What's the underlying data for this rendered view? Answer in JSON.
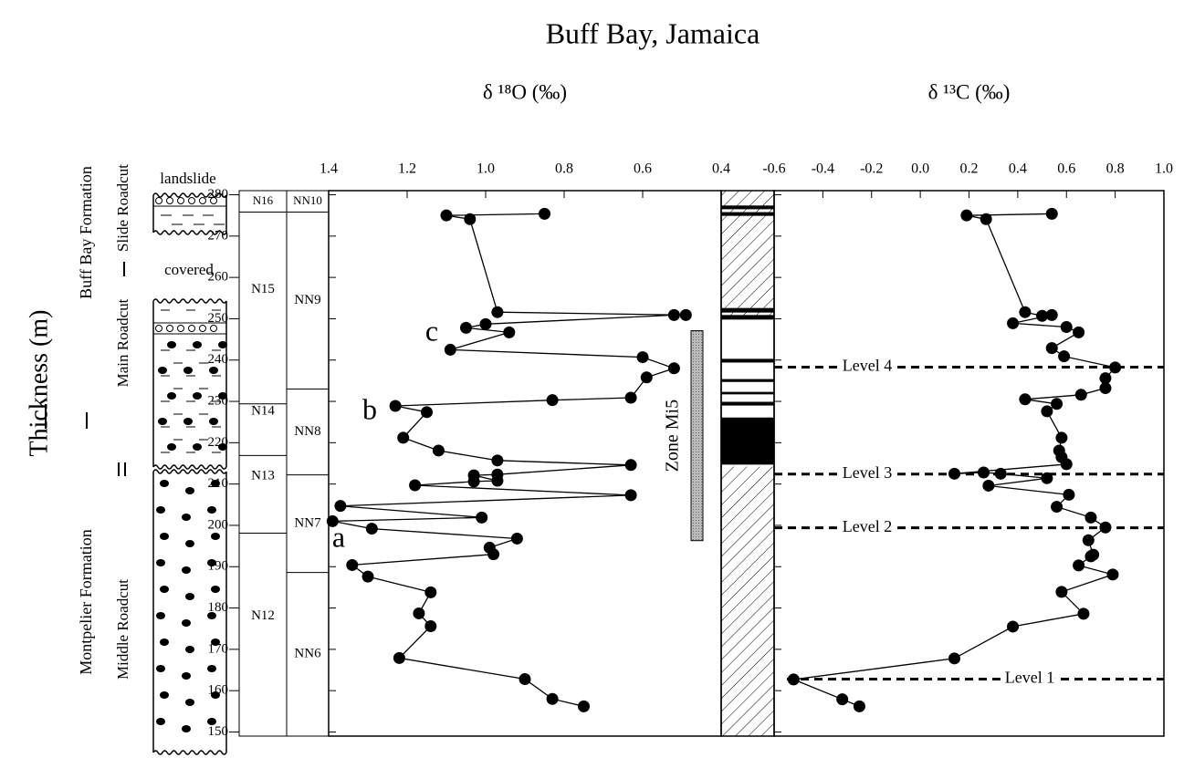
{
  "title": "Buff Bay, Jamaica",
  "ylabel": "Thickness (m)",
  "ylim": [
    149,
    281
  ],
  "yticks": [
    150,
    160,
    170,
    180,
    190,
    200,
    210,
    220,
    230,
    240,
    250,
    260,
    270,
    280
  ],
  "formations": [
    "Buff Bay Formation",
    "Montpelier Formation"
  ],
  "sections": [
    "Slide Roadcut",
    "Main Roadcut",
    "Middle Roadcut"
  ],
  "lithology_notes": [
    "landslide",
    "covered"
  ],
  "planktonic_zones": {
    "names": [
      "N16",
      "N15",
      "N14",
      "N13",
      "N12"
    ],
    "boundaries": [
      275.8,
      229.4,
      216.9,
      198.1
    ]
  },
  "nannofossil_zones": {
    "names": [
      "NN10",
      "NN9",
      "NN8",
      "NN7",
      "NN6"
    ],
    "boundaries": [
      275.8,
      233.0,
      212.2,
      188.6
    ]
  },
  "magnetostratigraphy": {
    "normal": [
      [
        277.4,
        276.5
      ],
      [
        275.8,
        274.9
      ],
      [
        252.6,
        251.5
      ],
      [
        250.9,
        249.8
      ],
      [
        240.3,
        239.4
      ],
      [
        235.4,
        234.7
      ],
      [
        232.3,
        231.7
      ],
      [
        229.9,
        229.0
      ],
      [
        226.1,
        214.7
      ]
    ],
    "gap": [
      249.8,
      214.2
    ]
  },
  "chart_data": [
    {
      "type": "line",
      "xlabel": "δ ¹⁸O (‰)",
      "xlim": [
        1.4,
        0.4
      ],
      "xticks": [
        1.4,
        1.2,
        {
          "value": 1.0,
          "label": "1.0"
        },
        0.8,
        0.6,
        0.4
      ],
      "thickness": [
        275.4,
        275.0,
        274.1,
        251.6,
        250.9,
        250.9,
        248.7,
        247.8,
        246.7,
        242.5,
        240.7,
        238.0,
        235.8,
        230.9,
        230.3,
        228.9,
        227.4,
        221.2,
        218.1,
        215.7,
        214.6,
        212.3,
        212.1,
        210.8,
        210.6,
        209.7,
        207.3,
        204.7,
        201.9,
        201.0,
        199.2,
        196.8,
        194.6,
        193.0,
        190.4,
        187.6,
        183.8,
        178.7,
        175.6,
        167.9,
        162.8,
        158.0,
        156.2
      ],
      "values": [
        0.85,
        1.1,
        1.04,
        0.97,
        0.49,
        0.52,
        1.0,
        1.05,
        0.94,
        1.09,
        0.6,
        0.52,
        0.59,
        0.63,
        0.83,
        1.23,
        1.15,
        1.21,
        1.12,
        0.97,
        0.63,
        0.97,
        1.03,
        0.97,
        1.03,
        1.18,
        0.63,
        1.37,
        1.01,
        1.39,
        1.29,
        0.92,
        0.99,
        0.98,
        1.34,
        1.3,
        1.14,
        1.17,
        1.14,
        1.22,
        0.9,
        0.83,
        0.75
      ],
      "annotations": [
        "a",
        "b",
        "c"
      ],
      "zone": {
        "label": "Zone Mi5",
        "range": [
          247.1,
          196.3
        ]
      }
    },
    {
      "type": "line",
      "xlabel": "δ ¹³C (‰)",
      "xlim": [
        -0.6,
        1.0
      ],
      "xticks": [
        -0.6,
        -0.4,
        -0.2,
        {
          "value": 0,
          "label": "0.0"
        },
        0.2,
        0.4,
        0.6,
        0.8,
        {
          "value": 1,
          "label": "1.0"
        }
      ],
      "thickness": [
        275.4,
        275.0,
        274.1,
        251.6,
        250.7,
        250.9,
        248.9,
        248.0,
        246.7,
        242.9,
        240.9,
        238.2,
        235.6,
        233.2,
        231.6,
        230.5,
        229.4,
        227.6,
        221.2,
        218.1,
        216.5,
        214.8,
        212.5,
        212.8,
        212.5,
        211.4,
        209.6,
        207.4,
        204.5,
        201.9,
        199.5,
        196.4,
        192.9,
        192.5,
        190.3,
        188.1,
        183.9,
        178.6,
        175.5,
        167.8,
        162.7,
        157.9,
        156.2
      ],
      "values": [
        0.54,
        0.19,
        0.27,
        0.43,
        0.5,
        0.54,
        0.38,
        0.6,
        0.65,
        0.54,
        0.59,
        0.8,
        0.76,
        0.76,
        0.66,
        0.43,
        0.56,
        0.52,
        0.58,
        0.57,
        0.58,
        0.6,
        0.14,
        0.26,
        0.33,
        0.52,
        0.28,
        0.61,
        0.56,
        0.7,
        0.76,
        0.69,
        0.71,
        0.7,
        0.65,
        0.79,
        0.58,
        0.67,
        0.38,
        0.14,
        -0.52,
        -0.32,
        -0.25
      ],
      "levels": [
        {
          "label": "Level 4",
          "thickness": 238.3
        },
        {
          "label": "Level 3",
          "thickness": 212.4
        },
        {
          "label": "Level 2",
          "thickness": 199.4
        },
        {
          "label": "Level 1",
          "thickness": 162.8
        }
      ]
    }
  ]
}
